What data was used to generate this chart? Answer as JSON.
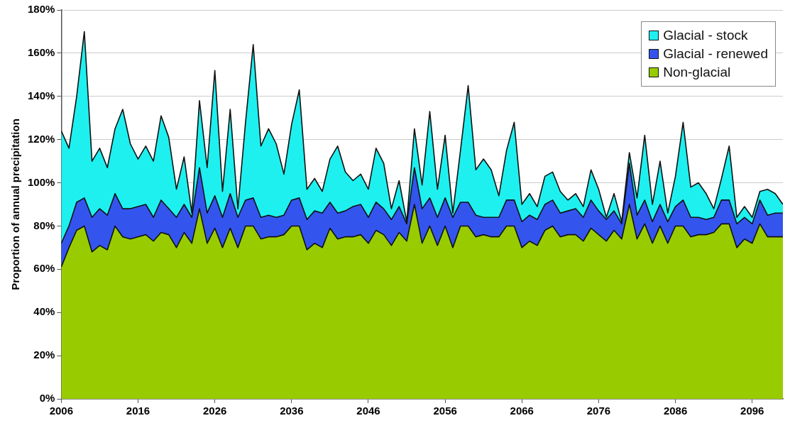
{
  "chart_data": {
    "type": "area",
    "stacked": true,
    "ylabel": "Proportion of annual precipitation",
    "x": [
      2006,
      2007,
      2008,
      2009,
      2010,
      2011,
      2012,
      2013,
      2014,
      2015,
      2016,
      2017,
      2018,
      2019,
      2020,
      2021,
      2022,
      2023,
      2024,
      2025,
      2026,
      2027,
      2028,
      2029,
      2030,
      2031,
      2032,
      2033,
      2034,
      2035,
      2036,
      2037,
      2038,
      2039,
      2040,
      2041,
      2042,
      2043,
      2044,
      2045,
      2046,
      2047,
      2048,
      2049,
      2050,
      2051,
      2052,
      2053,
      2054,
      2055,
      2056,
      2057,
      2058,
      2059,
      2060,
      2061,
      2062,
      2063,
      2064,
      2065,
      2066,
      2067,
      2068,
      2069,
      2070,
      2071,
      2072,
      2073,
      2074,
      2075,
      2076,
      2077,
      2078,
      2079,
      2080,
      2081,
      2082,
      2083,
      2084,
      2085,
      2086,
      2087,
      2088,
      2089,
      2090,
      2091,
      2092,
      2093,
      2094,
      2095,
      2096,
      2097,
      2098,
      2099,
      2100
    ],
    "series": [
      {
        "name": "Non-glacial",
        "color": "#99cc00",
        "values": [
          61,
          70,
          78,
          80,
          68,
          71,
          69,
          80,
          75,
          74,
          75,
          76,
          73,
          77,
          76,
          70,
          77,
          72,
          88,
          72,
          79,
          70,
          79,
          70,
          80,
          80,
          74,
          75,
          75,
          76,
          80,
          80,
          69,
          72,
          70,
          79,
          74,
          75,
          75,
          76,
          72,
          78,
          76,
          71,
          77,
          73,
          90,
          72,
          80,
          71,
          80,
          70,
          80,
          80,
          75,
          76,
          75,
          75,
          80,
          80,
          70,
          73,
          71,
          78,
          80,
          75,
          76,
          76,
          73,
          79,
          76,
          73,
          78,
          74,
          90,
          74,
          81,
          72,
          80,
          72,
          80,
          80,
          75,
          76,
          76,
          77,
          81,
          81,
          70,
          74,
          72,
          81,
          75,
          75,
          75
        ]
      },
      {
        "name": "Glacial - renewed",
        "color": "#3355ee",
        "values": [
          11,
          10,
          13,
          13,
          16,
          17,
          16,
          15,
          13,
          14,
          14,
          14,
          11,
          15,
          12,
          14,
          13,
          12,
          19,
          14,
          15,
          14,
          16,
          14,
          12,
          13,
          10,
          10,
          9,
          9,
          12,
          13,
          14,
          15,
          16,
          12,
          12,
          12,
          14,
          14,
          12,
          13,
          12,
          12,
          12,
          8,
          17,
          16,
          13,
          13,
          13,
          14,
          11,
          11,
          10,
          8,
          9,
          9,
          12,
          12,
          12,
          12,
          12,
          12,
          12,
          11,
          11,
          12,
          11,
          13,
          11,
          10,
          9,
          7,
          19,
          11,
          11,
          10,
          10,
          10,
          9,
          12,
          9,
          8,
          7,
          7,
          11,
          11,
          11,
          10,
          9,
          11,
          10,
          11,
          11
        ]
      },
      {
        "name": "Glacial - stock",
        "color": "#1ef0f0",
        "values": [
          52,
          36,
          49,
          77,
          26,
          28,
          22,
          30,
          46,
          30,
          22,
          27,
          26,
          39,
          33,
          13,
          22,
          2,
          31,
          21,
          58,
          12,
          39,
          4,
          36,
          71,
          33,
          40,
          34,
          19,
          35,
          50,
          14,
          15,
          10,
          20,
          31,
          18,
          12,
          14,
          13,
          25,
          21,
          5,
          12,
          1,
          18,
          11,
          40,
          13,
          29,
          2,
          24,
          54,
          21,
          27,
          22,
          10,
          23,
          36,
          8,
          10,
          6,
          13,
          13,
          10,
          5,
          7,
          5,
          14,
          10,
          1,
          8,
          1,
          5,
          8,
          30,
          8,
          20,
          4,
          14,
          36,
          14,
          16,
          12,
          4,
          10,
          25,
          3,
          5,
          3,
          4,
          12,
          9,
          4
        ]
      }
    ],
    "xlim": [
      2006,
      2100
    ],
    "xticks": [
      2006,
      2016,
      2026,
      2036,
      2046,
      2056,
      2066,
      2076,
      2086,
      2096
    ],
    "ylim": [
      0,
      180
    ],
    "yticks": [
      {
        "value": 0,
        "label": "0%"
      },
      {
        "value": 20,
        "label": "20%"
      },
      {
        "value": 40,
        "label": "40%"
      },
      {
        "value": 60,
        "label": "60%"
      },
      {
        "value": 80,
        "label": "80%"
      },
      {
        "value": 100,
        "label": "100%"
      },
      {
        "value": 120,
        "label": "120%"
      },
      {
        "value": 140,
        "label": "140%"
      },
      {
        "value": 160,
        "label": "160%"
      },
      {
        "value": 180,
        "label": "180%"
      }
    ],
    "grid": "y",
    "legend": "top right"
  }
}
